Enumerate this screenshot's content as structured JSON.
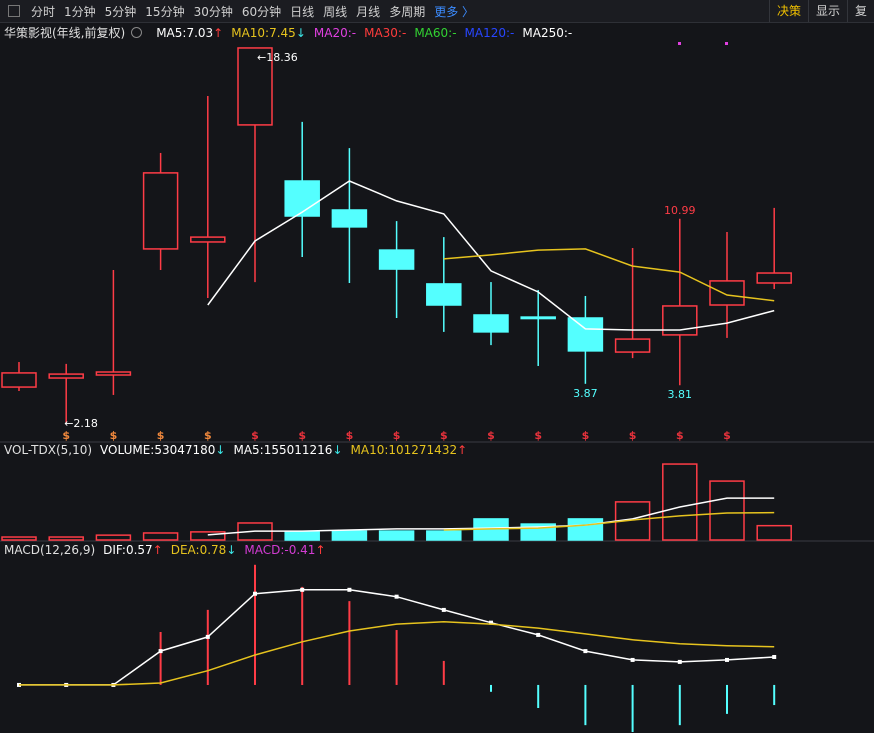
{
  "toolbar": {
    "periods": [
      "分时",
      "1分钟",
      "5分钟",
      "15分钟",
      "30分钟",
      "60分钟",
      "日线",
      "周线",
      "月线",
      "多周期"
    ],
    "more": "更多 〉",
    "actions": [
      "决策",
      "显示",
      "复"
    ]
  },
  "arrow_colors": {
    "↑": "#ff3c3c",
    "↓": "#3ce6e6"
  },
  "chart_data": [
    {
      "type": "candlestick",
      "title": "华策影视(年线,前复权)",
      "ylim": [
        1.36,
        19.48
      ],
      "up_color": "#ff3c46",
      "down_color": "#54ffff",
      "candles": [
        {
          "open": 3.73,
          "high": 4.81,
          "low": 3.56,
          "close": 4.34
        },
        {
          "open": 4.12,
          "high": 4.73,
          "low": 2.18,
          "close": 4.29,
          "low_label": "←2.18",
          "signal": "$",
          "signal_color": "#f0883c"
        },
        {
          "open": 4.25,
          "high": 8.78,
          "low": 3.39,
          "close": 4.38,
          "signal": "$",
          "signal_color": "#f0883c"
        },
        {
          "open": 9.69,
          "high": 13.83,
          "low": 8.78,
          "close": 12.97,
          "signal": "$",
          "signal_color": "#f0883c"
        },
        {
          "open": 9.99,
          "high": 16.29,
          "low": 7.57,
          "close": 10.2,
          "signal": "$",
          "signal_color": "#f0883c"
        },
        {
          "open": 15.04,
          "high": 18.36,
          "low": 8.26,
          "close": 18.36,
          "high_label": "←18.36",
          "signal": "$",
          "signal_color": "#e8323c"
        },
        {
          "open": 12.62,
          "high": 15.17,
          "low": 9.34,
          "close": 11.11,
          "signal": "$",
          "signal_color": "#e8323c"
        },
        {
          "open": 11.37,
          "high": 14.04,
          "low": 8.22,
          "close": 10.64,
          "signal": "$",
          "signal_color": "#e8323c"
        },
        {
          "open": 9.64,
          "high": 10.89,
          "low": 6.71,
          "close": 8.82,
          "signal": "$",
          "signal_color": "#e8323c"
        },
        {
          "open": 8.18,
          "high": 10.2,
          "low": 6.11,
          "close": 7.27,
          "signal": "$",
          "signal_color": "#e8323c"
        },
        {
          "open": 6.84,
          "high": 8.26,
          "low": 5.54,
          "close": 6.11,
          "signal": "$",
          "signal_color": "#e8323c"
        },
        {
          "open": 6.75,
          "high": 7.92,
          "low": 4.64,
          "close": 6.71,
          "signal": "$",
          "signal_color": "#e8323c"
        },
        {
          "open": 6.71,
          "high": 7.66,
          "low": 3.87,
          "close": 5.29,
          "low_label": "3.87",
          "signal": "$",
          "signal_color": "#e8323c"
        },
        {
          "open": 5.24,
          "high": 9.73,
          "low": 4.98,
          "close": 5.8,
          "signal": "$",
          "signal_color": "#e8323c"
        },
        {
          "open": 5.98,
          "high": 10.99,
          "low": 3.81,
          "close": 7.23,
          "high_label": "10.99",
          "low_label": "3.81",
          "signal": "$",
          "signal_color": "#e8323c"
        },
        {
          "open": 7.27,
          "high": 10.42,
          "low": 5.85,
          "close": 8.31,
          "signal": "$",
          "signal_color": "#e8323c"
        },
        {
          "open": 8.22,
          "high": 11.46,
          "low": 7.96,
          "close": 8.65
        }
      ],
      "series": [
        {
          "name": "MA5:",
          "color": "#ffffff",
          "arrow": "↑",
          "values": [
            null,
            null,
            null,
            null,
            7.27,
            10.03,
            11.28,
            12.62,
            11.76,
            11.2,
            8.74,
            7.83,
            6.24,
            6.19,
            6.19,
            6.49,
            7.03
          ]
        },
        {
          "name": "MA10:",
          "color": "#e6c31e",
          "arrow": "↓",
          "values": [
            null,
            null,
            null,
            null,
            null,
            null,
            null,
            null,
            null,
            9.26,
            9.43,
            9.64,
            9.69,
            8.95,
            8.69,
            7.7,
            7.45
          ]
        },
        {
          "name": "MA20:",
          "color": "#e040e0",
          "value_label": "-"
        },
        {
          "name": "MA30:",
          "color": "#ff3c3c",
          "value_label": "-"
        },
        {
          "name": "MA60:",
          "color": "#32d232",
          "value_label": "-"
        },
        {
          "name": "MA120:",
          "color": "#2846ff",
          "value_label": "-"
        },
        {
          "name": "MA250:",
          "color": "#ffffff",
          "value_label": "-"
        }
      ]
    },
    {
      "type": "volume",
      "title": "VOL-TDX(5,10)",
      "ylim": [
        0,
        314500000
      ],
      "bars": {
        "name": "VOLUME:",
        "color": "#ffffff",
        "arrow": "↓",
        "values": [
          11000000,
          11000000,
          18000000,
          26000000,
          30000000,
          63000000,
          30000000,
          33000000,
          33000000,
          33000000,
          78000000,
          59000000,
          78000000,
          141000000,
          281000000,
          218000000,
          53047180
        ]
      },
      "series": [
        {
          "name": "MA5:",
          "color": "#ffffff",
          "arrow": "↓",
          "values": [
            null,
            null,
            null,
            null,
            19000000,
            33000000,
            33000000,
            37000000,
            41000000,
            41000000,
            44000000,
            48000000,
            55000000,
            78000000,
            122000000,
            155000000,
            155011216
          ]
        },
        {
          "name": "MA10:",
          "color": "#e6c31e",
          "arrow": "↑",
          "values": [
            null,
            null,
            null,
            null,
            null,
            null,
            null,
            null,
            null,
            37000000,
            41000000,
            44000000,
            55000000,
            74000000,
            89000000,
            100000000,
            101271432
          ]
        }
      ]
    },
    {
      "type": "macd",
      "title": "MACD(12,26,9)",
      "ylim": [
        -0.98,
        2.65
      ],
      "up_color": "#ff3c46",
      "down_color": "#54ffff",
      "series": [
        {
          "name": "DIF:",
          "color": "#ffffff",
          "arrow": "↑",
          "values": [
            0,
            0,
            0,
            0.69,
            0.98,
            1.86,
            1.94,
            1.94,
            1.8,
            1.53,
            1.27,
            1.02,
            0.69,
            0.51,
            0.47,
            0.51,
            0.57
          ]
        },
        {
          "name": "DEA:",
          "color": "#e6c31e",
          "arrow": "↓",
          "values": [
            0,
            0,
            0,
            0.04,
            0.29,
            0.61,
            0.88,
            1.1,
            1.24,
            1.29,
            1.24,
            1.16,
            1.04,
            0.92,
            0.84,
            0.8,
            0.78
          ]
        }
      ],
      "bars": {
        "name": "MACD:",
        "color": "#d23cd2",
        "arrow": "↑",
        "values": [
          0,
          0,
          0,
          1.08,
          1.53,
          2.45,
          2.0,
          1.71,
          1.12,
          0.49,
          -0.14,
          -0.47,
          -0.82,
          -0.96,
          -0.82,
          -0.59,
          -0.41
        ]
      }
    }
  ]
}
